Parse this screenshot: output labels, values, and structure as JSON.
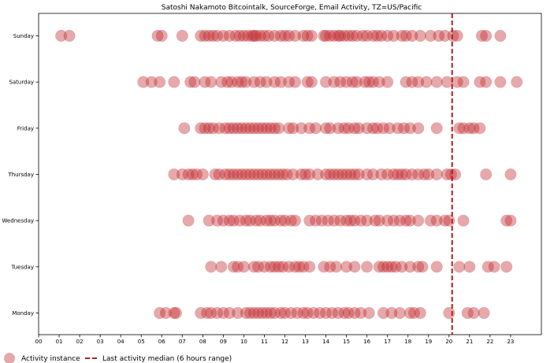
{
  "chart_data": {
    "type": "scatter",
    "title": "Satoshi Nakamoto Bitcointalk, SourceForge, Email Activity, TZ=US/Pacific",
    "xlabel": "",
    "ylabel": "",
    "xlim": [
      0,
      24.5
    ],
    "x_ticks": [
      "00",
      "01",
      "02",
      "03",
      "04",
      "05",
      "06",
      "07",
      "08",
      "09",
      "10",
      "11",
      "12",
      "13",
      "14",
      "15",
      "16",
      "17",
      "18",
      "19",
      "20",
      "21",
      "22",
      "23"
    ],
    "y_categories": [
      "Monday",
      "Tuesday",
      "Wednesday",
      "Thursday",
      "Friday",
      "Saturday",
      "Sunday"
    ],
    "marker_color": "#c0282d",
    "marker_alpha": 0.4,
    "median_line": {
      "x": 20.15,
      "color": "#b01c1c",
      "style": "dashed",
      "label": "Last activity median (6 hours range)"
    },
    "series": [
      {
        "name": "Activity instance",
        "points": {
          "Sunday": [
            1.1,
            1.5,
            5.8,
            6.0,
            7.0,
            7.9,
            8.1,
            8.3,
            8.5,
            8.7,
            9.0,
            9.3,
            9.6,
            9.8,
            10.0,
            10.2,
            10.4,
            10.5,
            10.6,
            10.8,
            11.0,
            11.2,
            11.5,
            11.8,
            12.0,
            12.2,
            12.5,
            12.9,
            13.1,
            13.3,
            13.9,
            14.0,
            14.2,
            14.4,
            14.6,
            14.7,
            14.9,
            15.1,
            15.3,
            15.5,
            15.8,
            16.0,
            16.3,
            16.5,
            16.7,
            17.0,
            17.3,
            17.7,
            17.9,
            18.2,
            18.6,
            19.1,
            19.5,
            19.8,
            20.2,
            20.4,
            21.6,
            21.8,
            22.5
          ],
          "Saturday": [
            5.1,
            5.5,
            5.9,
            6.6,
            7.4,
            7.6,
            8.1,
            8.4,
            8.9,
            9.2,
            9.4,
            9.7,
            9.9,
            10.1,
            10.5,
            10.8,
            11.1,
            11.5,
            11.8,
            12.2,
            12.5,
            13.1,
            13.3,
            14.0,
            14.4,
            14.7,
            15.0,
            15.3,
            15.5,
            15.9,
            16.1,
            16.3,
            16.6,
            17.0,
            17.9,
            18.2,
            18.5,
            18.9,
            19.4,
            19.9,
            20.4,
            20.7,
            21.5,
            21.8,
            22.5,
            23.3
          ],
          "Friday": [
            7.1,
            7.9,
            8.1,
            8.3,
            8.5,
            8.8,
            9.1,
            9.3,
            9.5,
            9.7,
            9.9,
            10.1,
            10.3,
            10.5,
            10.7,
            10.9,
            11.1,
            11.3,
            11.5,
            11.7,
            12.2,
            12.4,
            12.8,
            13.2,
            13.5,
            14.0,
            14.2,
            14.6,
            14.9,
            15.1,
            15.4,
            15.6,
            16.0,
            16.3,
            16.5,
            16.8,
            17.1,
            17.5,
            17.8,
            18.1,
            18.5,
            19.4,
            20.5,
            20.7,
            21.0,
            21.2,
            21.5
          ],
          "Thursday": [
            6.6,
            7.0,
            7.3,
            7.5,
            7.7,
            8.0,
            8.6,
            8.8,
            9.1,
            9.3,
            9.5,
            9.7,
            9.9,
            10.1,
            10.3,
            10.5,
            10.7,
            10.9,
            11.1,
            11.3,
            11.5,
            11.7,
            11.9,
            12.1,
            12.4,
            12.8,
            13.0,
            13.2,
            13.6,
            14.0,
            14.2,
            14.4,
            14.6,
            14.8,
            15.0,
            15.2,
            15.4,
            15.6,
            16.0,
            16.3,
            16.7,
            17.0,
            17.3,
            17.5,
            17.7,
            17.9,
            18.2,
            18.5,
            18.8,
            19.0,
            19.4,
            19.9,
            20.1,
            20.3,
            21.8,
            23.0
          ],
          "Wednesday": [
            7.3,
            8.3,
            8.7,
            9.0,
            9.3,
            9.5,
            9.8,
            10.1,
            10.3,
            10.6,
            10.8,
            11.1,
            11.3,
            11.5,
            11.8,
            12.0,
            12.3,
            12.5,
            13.2,
            13.5,
            13.8,
            14.1,
            14.4,
            14.7,
            15.0,
            15.2,
            15.4,
            15.7,
            16.0,
            16.4,
            16.6,
            17.0,
            17.3,
            17.6,
            17.9,
            18.1,
            18.5,
            19.1,
            19.4,
            19.8,
            20.0,
            20.7,
            22.8,
            23.0
          ],
          "Tuesday": [
            8.4,
            8.9,
            9.5,
            9.7,
            10.0,
            10.5,
            10.7,
            11.0,
            11.3,
            11.5,
            11.7,
            11.9,
            12.2,
            12.5,
            12.7,
            12.9,
            13.2,
            13.9,
            14.2,
            14.5,
            15.0,
            15.4,
            16.0,
            16.6,
            16.8,
            17.0,
            17.2,
            17.4,
            17.7,
            18.1,
            18.5,
            18.7,
            19.4,
            20.5,
            21.0,
            21.9,
            22.2,
            22.8
          ],
          "Monday": [
            5.9,
            6.2,
            6.6,
            6.7,
            7.9,
            8.2,
            8.4,
            8.7,
            9.0,
            9.3,
            9.7,
            10.1,
            10.3,
            10.5,
            10.7,
            10.9,
            11.1,
            11.3,
            11.5,
            11.8,
            12.0,
            12.3,
            12.6,
            12.9,
            13.1,
            13.4,
            13.7,
            14.0,
            14.3,
            14.6,
            14.9,
            15.1,
            15.4,
            15.7,
            16.1,
            16.8,
            17.2,
            17.6,
            18.1,
            18.3,
            18.6,
            20.0,
            20.9,
            21.2,
            21.7
          ]
        }
      }
    ],
    "legend": {
      "placement": "bottom-left",
      "entries": [
        "Activity instance",
        "Last activity median (6 hours range)"
      ]
    }
  }
}
